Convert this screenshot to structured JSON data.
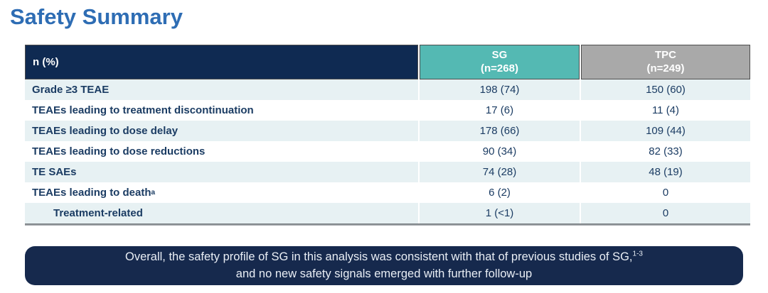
{
  "page": {
    "title": "Safety Summary"
  },
  "colors": {
    "title_blue": "#2e6db4",
    "header_navy": "#0f2a52",
    "sg_teal": "#54b9b3",
    "tpc_gray": "#a9a9a9",
    "row_alt_light": "#e7f1f3",
    "body_text_navy": "#1b3c63",
    "banner_navy": "#16294d"
  },
  "table": {
    "header": {
      "label": "n (%)",
      "sg_line1": "SG",
      "sg_line2": "(n=268)",
      "tpc_line1": "TPC",
      "tpc_line2": "(n=249)"
    },
    "rows": [
      {
        "label": "Grade ≥3 TEAE",
        "sg": "198 (74)",
        "tpc": "150 (60)"
      },
      {
        "label": "TEAEs leading to treatment discontinuation",
        "sg": "17 (6)",
        "tpc": "11 (4)"
      },
      {
        "label": "TEAEs leading to dose delay",
        "sg": "178 (66)",
        "tpc": "109 (44)"
      },
      {
        "label": "TEAEs leading to dose reductions",
        "sg": "90 (34)",
        "tpc": "82 (33)"
      },
      {
        "label": "TE SAEs",
        "sg": "74 (28)",
        "tpc": "48 (19)"
      },
      {
        "label": "TEAEs leading to death",
        "sup": "a",
        "sg": "6 (2)",
        "tpc": "0"
      },
      {
        "label": "Treatment-related",
        "sg": "1 (<1)",
        "tpc": "0"
      }
    ]
  },
  "banner": {
    "line1": "Overall, the safety profile of SG in this analysis was consistent with that of previous studies of SG,",
    "line1_sup": "1-3",
    "line2": "and no new safety signals emerged with further follow-up"
  }
}
